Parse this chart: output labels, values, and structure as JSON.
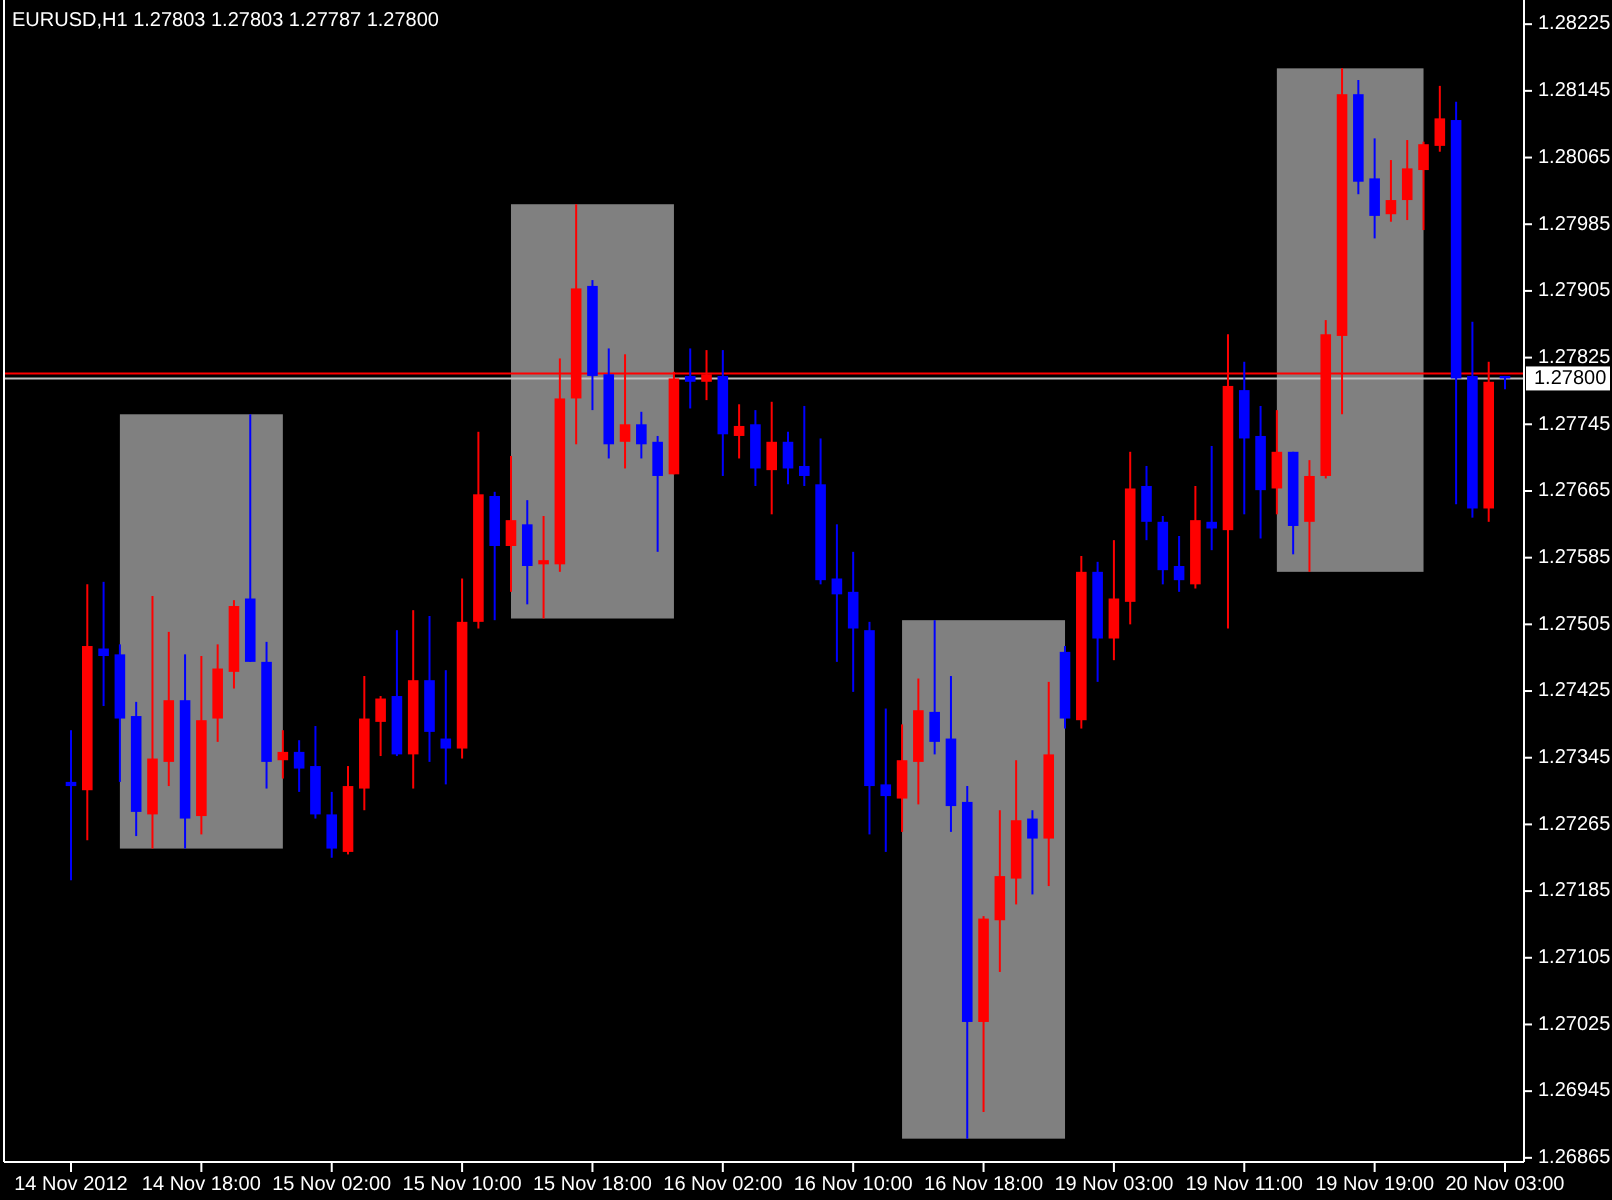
{
  "chart_data": {
    "type": "candlestick",
    "title": "EURUSD,H1 1.27803 1.27803 1.27787 1.27800",
    "categories": [
      "14 Nov 2012",
      null,
      null,
      null,
      null,
      null,
      null,
      null,
      "14 Nov 18:00",
      null,
      null,
      null,
      null,
      null,
      null,
      null,
      "15 Nov 02:00",
      null,
      null,
      null,
      null,
      null,
      null,
      null,
      "15 Nov 10:00",
      null,
      null,
      null,
      null,
      null,
      null,
      null,
      "15 Nov 18:00",
      null,
      null,
      null,
      null,
      null,
      null,
      null,
      "16 Nov 02:00",
      null,
      null,
      null,
      null,
      null,
      null,
      null,
      "16 Nov 10:00",
      null,
      null,
      null,
      null,
      null,
      null,
      null,
      "16 Nov 18:00",
      null,
      null,
      null,
      null,
      null,
      null,
      null,
      "19 Nov 03:00",
      null,
      null,
      null,
      null,
      null,
      null,
      null,
      "19 Nov 11:00",
      null,
      null,
      null,
      null,
      null,
      null,
      null,
      "19 Nov 19:00",
      null,
      null,
      null,
      null,
      null,
      null,
      null,
      "20 Nov 03:00"
    ],
    "ohlc": [
      [
        1.27316,
        1.27378,
        1.27198,
        1.27311
      ],
      [
        1.27306,
        1.27553,
        1.27246,
        1.27479
      ],
      [
        1.27476,
        1.27556,
        1.27407,
        1.27467
      ],
      [
        1.27469,
        1.27481,
        1.27316,
        1.27392
      ],
      [
        1.27395,
        1.27412,
        1.27251,
        1.2728
      ],
      [
        1.27277,
        1.27539,
        1.27236,
        1.27344
      ],
      [
        1.2734,
        1.27496,
        1.27311,
        1.27414
      ],
      [
        1.27414,
        1.27469,
        1.27236,
        1.27272
      ],
      [
        1.27275,
        1.27467,
        1.27253,
        1.2739
      ],
      [
        1.27392,
        1.27481,
        1.27364,
        1.27452
      ],
      [
        1.27448,
        1.27534,
        1.27428,
        1.27527
      ],
      [
        1.27536,
        1.27757,
        1.2746,
        1.2746
      ],
      [
        1.2746,
        1.27484,
        1.27308,
        1.2734
      ],
      [
        1.27342,
        1.27378,
        1.2732,
        1.27352
      ],
      [
        1.27352,
        1.27366,
        1.27304,
        1.27332
      ],
      [
        1.27335,
        1.27383,
        1.27272,
        1.27277
      ],
      [
        1.27277,
        1.27304,
        1.27225,
        1.27236
      ],
      [
        1.27232,
        1.27335,
        1.27229,
        1.27311
      ],
      [
        1.27308,
        1.27443,
        1.27282,
        1.27392
      ],
      [
        1.27388,
        1.27419,
        1.27347,
        1.27416
      ],
      [
        1.27419,
        1.27498,
        1.27347,
        1.27349
      ],
      [
        1.27349,
        1.27522,
        1.27308,
        1.27438
      ],
      [
        1.27438,
        1.27515,
        1.2734,
        1.27376
      ],
      [
        1.27368,
        1.2745,
        1.27313,
        1.27356
      ],
      [
        1.27356,
        1.2756,
        1.27344,
        1.27508
      ],
      [
        1.27508,
        1.27736,
        1.275,
        1.27661
      ],
      [
        1.27659,
        1.27664,
        1.2751,
        1.27599
      ],
      [
        1.27599,
        1.27707,
        1.27544,
        1.2763
      ],
      [
        1.27625,
        1.27654,
        1.27529,
        1.27575
      ],
      [
        1.27577,
        1.27635,
        1.27512,
        1.27582
      ],
      [
        1.27577,
        1.27824,
        1.27568,
        1.27776
      ],
      [
        1.27776,
        1.28009,
        1.27721,
        1.27908
      ],
      [
        1.27911,
        1.27918,
        1.27762,
        1.27803
      ],
      [
        1.27805,
        1.27836,
        1.27704,
        1.27721
      ],
      [
        1.27724,
        1.27829,
        1.27692,
        1.27745
      ],
      [
        1.27745,
        1.2776,
        1.27704,
        1.27721
      ],
      [
        1.27724,
        1.27731,
        1.27592,
        1.27683
      ],
      [
        1.27685,
        1.27808,
        1.27685,
        1.278
      ],
      [
        1.27803,
        1.27836,
        1.27764,
        1.27796
      ],
      [
        1.27796,
        1.27834,
        1.27774,
        1.27805
      ],
      [
        1.27803,
        1.27834,
        1.27683,
        1.27733
      ],
      [
        1.27731,
        1.27769,
        1.27704,
        1.27743
      ],
      [
        1.27745,
        1.27762,
        1.27671,
        1.27692
      ],
      [
        1.2769,
        1.27772,
        1.27637,
        1.27724
      ],
      [
        1.27724,
        1.27736,
        1.27673,
        1.27692
      ],
      [
        1.27695,
        1.27767,
        1.27671,
        1.27683
      ],
      [
        1.27673,
        1.27728,
        1.27553,
        1.27558
      ],
      [
        1.2756,
        1.27625,
        1.2746,
        1.27541
      ],
      [
        1.27544,
        1.27592,
        1.27424,
        1.275
      ],
      [
        1.27498,
        1.27508,
        1.27253,
        1.27311
      ],
      [
        1.27313,
        1.27404,
        1.27232,
        1.27299
      ],
      [
        1.27296,
        1.27385,
        1.27256,
        1.27342
      ],
      [
        1.2734,
        1.2744,
        1.27289,
        1.27402
      ],
      [
        1.274,
        1.2751,
        1.27349,
        1.27364
      ],
      [
        1.27368,
        1.27443,
        1.27256,
        1.27287
      ],
      [
        1.27292,
        1.27311,
        1.26888,
        1.27028
      ],
      [
        1.27028,
        1.27155,
        1.2692,
        1.27152
      ],
      [
        1.2715,
        1.27282,
        1.27088,
        1.27203
      ],
      [
        1.272,
        1.27342,
        1.27169,
        1.2727
      ],
      [
        1.27272,
        1.27282,
        1.27181,
        1.27248
      ],
      [
        1.27248,
        1.27436,
        1.27191,
        1.27349
      ],
      [
        1.27472,
        1.27479,
        1.2738,
        1.27392
      ],
      [
        1.2739,
        1.27587,
        1.2738,
        1.27568
      ],
      [
        1.27568,
        1.2758,
        1.27436,
        1.27488
      ],
      [
        1.27488,
        1.27606,
        1.27462,
        1.27536
      ],
      [
        1.27532,
        1.27712,
        1.27505,
        1.27668
      ],
      [
        1.27671,
        1.27695,
        1.27606,
        1.27628
      ],
      [
        1.27628,
        1.27635,
        1.27553,
        1.2757
      ],
      [
        1.27575,
        1.27611,
        1.27544,
        1.27558
      ],
      [
        1.27553,
        1.27671,
        1.27548,
        1.2763
      ],
      [
        1.27628,
        1.27719,
        1.27594,
        1.2762
      ],
      [
        1.27618,
        1.27853,
        1.275,
        1.27791
      ],
      [
        1.27786,
        1.2782,
        1.27637,
        1.27728
      ],
      [
        1.27731,
        1.27767,
        1.27608,
        1.27666
      ],
      [
        1.27668,
        1.27762,
        1.27637,
        1.27712
      ],
      [
        1.27712,
        1.27712,
        1.27589,
        1.27623
      ],
      [
        1.27628,
        1.27702,
        1.27568,
        1.27683
      ],
      [
        1.27683,
        1.2787,
        1.2768,
        1.27853
      ],
      [
        1.27851,
        1.28172,
        1.27757,
        1.28141
      ],
      [
        1.28141,
        1.28158,
        1.28021,
        1.28036
      ],
      [
        1.2804,
        1.28088,
        1.27968,
        1.27995
      ],
      [
        1.27997,
        1.28062,
        1.27988,
        1.28014
      ],
      [
        1.28014,
        1.28086,
        1.2799,
        1.28052
      ],
      [
        1.2805,
        1.28084,
        1.27978,
        1.28081
      ],
      [
        1.28079,
        1.28151,
        1.28072,
        1.28112
      ],
      [
        1.2811,
        1.28132,
        1.27649,
        1.278
      ],
      [
        1.27803,
        1.27868,
        1.27633,
        1.27644
      ],
      [
        1.27644,
        1.2782,
        1.27628,
        1.27796
      ],
      [
        1.27803,
        1.27803,
        1.27787,
        1.278
      ]
    ],
    "colors": [
      "#0000ff",
      "#ff0000",
      "#0000ff",
      "#0000ff",
      "#0000ff",
      "#ff0000",
      "#ff0000",
      "#0000ff",
      "#ff0000",
      "#ff0000",
      "#ff0000",
      "#0000ff",
      "#0000ff",
      "#ff0000",
      "#0000ff",
      "#0000ff",
      "#0000ff",
      "#ff0000",
      "#ff0000",
      "#ff0000",
      "#0000ff",
      "#ff0000",
      "#0000ff",
      "#0000ff",
      "#ff0000",
      "#ff0000",
      "#0000ff",
      "#ff0000",
      "#0000ff",
      "#ff0000",
      "#ff0000",
      "#ff0000",
      "#0000ff",
      "#0000ff",
      "#ff0000",
      "#0000ff",
      "#0000ff",
      "#ff0000",
      "#0000ff",
      "#ff0000",
      "#0000ff",
      "#ff0000",
      "#0000ff",
      "#ff0000",
      "#0000ff",
      "#0000ff",
      "#0000ff",
      "#0000ff",
      "#0000ff",
      "#0000ff",
      "#0000ff",
      "#ff0000",
      "#ff0000",
      "#0000ff",
      "#0000ff",
      "#0000ff",
      "#ff0000",
      "#ff0000",
      "#ff0000",
      "#0000ff",
      "#ff0000",
      "#0000ff",
      "#ff0000",
      "#0000ff",
      "#ff0000",
      "#ff0000",
      "#0000ff",
      "#0000ff",
      "#0000ff",
      "#ff0000",
      "#0000ff",
      "#ff0000",
      "#0000ff",
      "#0000ff",
      "#ff0000",
      "#0000ff",
      "#ff0000",
      "#ff0000",
      "#ff0000",
      "#0000ff",
      "#0000ff",
      "#ff0000",
      "#ff0000",
      "#ff0000",
      "#ff0000",
      "#0000ff",
      "#0000ff",
      "#ff0000",
      "#0000ff"
    ],
    "ylim": [
      1.2686,
      1.28254
    ],
    "yticks": [
      1.28225,
      1.28145,
      1.28065,
      1.27985,
      1.27905,
      1.27825,
      1.27745,
      1.27665,
      1.27585,
      1.27505,
      1.27425,
      1.27345,
      1.27265,
      1.27185,
      1.27105,
      1.27025,
      1.26945,
      1.26865
    ],
    "ref_lines": [
      {
        "axis": "y",
        "value": 1.27806,
        "color": "#ff0000"
      },
      {
        "axis": "y",
        "value": 1.278,
        "label": "1.27800",
        "color": "#c0c0c0"
      }
    ]
  }
}
